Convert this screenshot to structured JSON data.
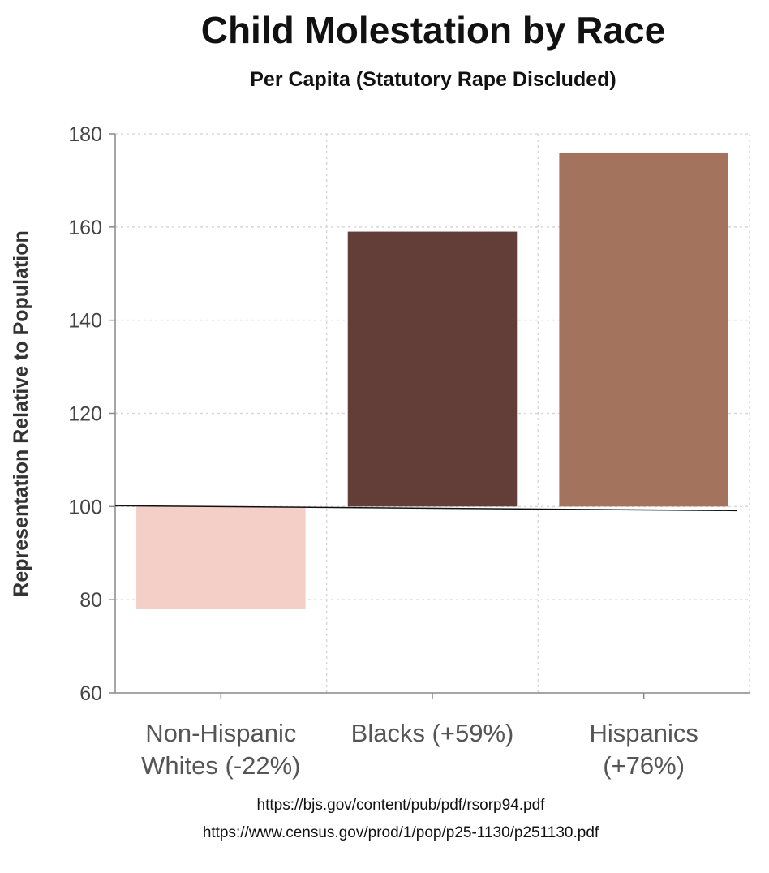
{
  "chart_data": {
    "type": "bar",
    "title": "Child Molestation by Race",
    "subtitle": "Per Capita (Statutory Rape Discluded)",
    "ylabel": "Representation Relative to Population",
    "xlabel": "",
    "ylim": [
      60,
      180
    ],
    "yticks": [
      60,
      80,
      100,
      120,
      140,
      160,
      180
    ],
    "baseline": 100,
    "grid": true,
    "categories": [
      [
        "Non-Hispanic",
        "Whites (-22%)"
      ],
      [
        "Blacks (+59%)"
      ],
      [
        "Hispanics",
        "(+76%)"
      ]
    ],
    "values": [
      78,
      159,
      176
    ],
    "colors": [
      "#f3cfc8",
      "#633d37",
      "#a4735e"
    ]
  },
  "sources": [
    "https://bjs.gov/content/pub/pdf/rsorp94.pdf",
    "https://www.census.gov/prod/1/pop/p25-1130/p251130.pdf"
  ]
}
